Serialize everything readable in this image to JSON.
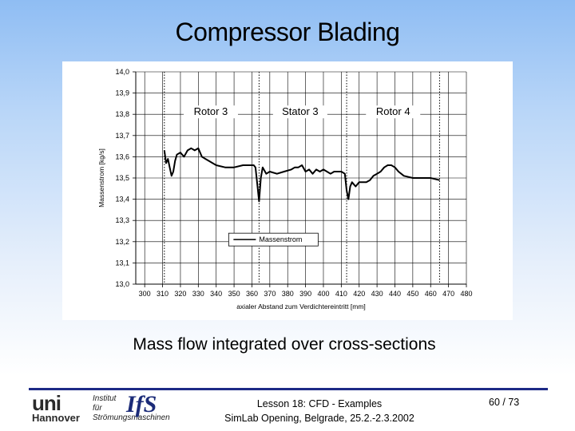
{
  "slide": {
    "title": "Compressor Blading",
    "caption": "Mass flow integrated over cross-sections"
  },
  "footer": {
    "logo_uni": "uni",
    "logo_city": "Hannover",
    "institute_lines": [
      "Institut",
      "für",
      "Strömungsmaschinen"
    ],
    "logo_ifs": "IfS",
    "lesson": "Lesson 18: CFD - Examples",
    "event": "SimLab Opening, Belgrade, 25.2.-2.3.2002",
    "page": "60 / 73",
    "line_color": "#1d2a86"
  },
  "chart_data": {
    "type": "line",
    "xlabel": "axialer Abstand zum Verdichtereintritt [mm]",
    "ylabel": "Massenstrom [kg/s]",
    "xlim": [
      295,
      480
    ],
    "ylim": [
      13.0,
      14.0
    ],
    "x_ticks": [
      300,
      310,
      320,
      330,
      340,
      350,
      360,
      370,
      380,
      390,
      400,
      410,
      420,
      430,
      440,
      450,
      460,
      470,
      480
    ],
    "y_ticks": [
      "13,0",
      "13,1",
      "13,2",
      "13,3",
      "13,4",
      "13,5",
      "13,6",
      "13,7",
      "13,8",
      "13,9",
      "14,0"
    ],
    "grid": true,
    "legend": "center-bottom",
    "region_boundaries": [
      311,
      364,
      413,
      465
    ],
    "regions": [
      {
        "label": "Rotor 3",
        "x": 337
      },
      {
        "label": "Stator 3",
        "x": 387
      },
      {
        "label": "Rotor 4",
        "x": 439
      }
    ],
    "series": [
      {
        "name": "Massenstrom",
        "x": [
          311,
          312,
          313,
          314,
          315,
          316,
          317,
          318,
          320,
          322,
          324,
          326,
          328,
          330,
          332,
          334,
          336,
          340,
          345,
          350,
          355,
          360,
          361,
          362,
          363,
          364,
          365,
          366,
          368,
          370,
          374,
          378,
          382,
          384,
          386,
          388,
          390,
          392,
          394,
          396,
          398,
          400,
          402,
          404,
          406,
          408,
          410,
          412,
          413,
          414,
          415,
          416,
          418,
          420,
          422,
          424,
          426,
          428,
          430,
          432,
          434,
          436,
          438,
          440,
          442,
          445,
          450,
          455,
          460,
          465
        ],
        "y": [
          13.63,
          13.57,
          13.59,
          13.55,
          13.51,
          13.53,
          13.58,
          13.61,
          13.62,
          13.6,
          13.63,
          13.64,
          13.63,
          13.64,
          13.6,
          13.59,
          13.58,
          13.56,
          13.55,
          13.55,
          13.56,
          13.56,
          13.56,
          13.55,
          13.47,
          13.39,
          13.5,
          13.55,
          13.52,
          13.53,
          13.52,
          13.53,
          13.54,
          13.55,
          13.55,
          13.56,
          13.53,
          13.54,
          13.52,
          13.54,
          13.53,
          13.54,
          13.53,
          13.52,
          13.53,
          13.53,
          13.53,
          13.52,
          13.44,
          13.4,
          13.46,
          13.48,
          13.46,
          13.48,
          13.48,
          13.48,
          13.49,
          13.51,
          13.52,
          13.53,
          13.55,
          13.56,
          13.56,
          13.55,
          13.53,
          13.51,
          13.5,
          13.5,
          13.5,
          13.49
        ]
      }
    ]
  }
}
